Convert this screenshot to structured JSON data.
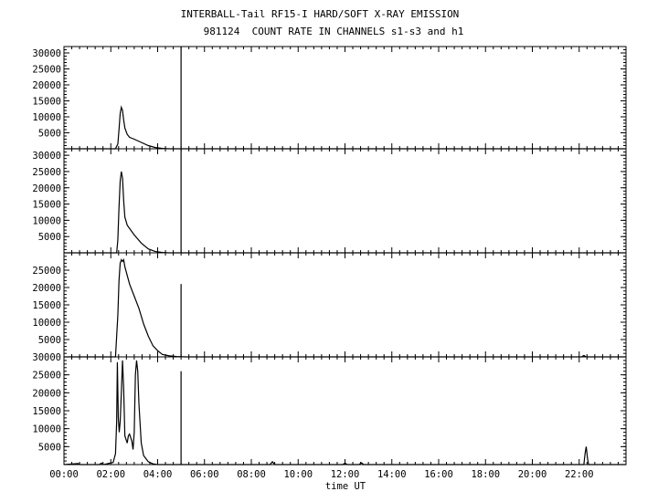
{
  "chart_data": {
    "type": "line",
    "title": "INTERBALL-Tail RF15-I HARD/SOFT X-RAY EMISSION",
    "subtitle": "981124  COUNT RATE IN CHANNELS s1-s3 and h1",
    "xlabel": "time UT",
    "x_tick_labels": [
      "00:00",
      "02:00",
      "04:00",
      "06:00",
      "08:00",
      "10:00",
      "12:00",
      "14:00",
      "16:00",
      "18:00",
      "20:00",
      "22:00"
    ],
    "x_tick_hours": [
      0,
      2,
      4,
      6,
      8,
      10,
      12,
      14,
      16,
      18,
      20,
      22
    ],
    "xlim": [
      0,
      24
    ],
    "grid": false,
    "panels": [
      {
        "ylim": [
          0,
          32000
        ],
        "y_ticks": [
          5000,
          10000,
          15000,
          20000,
          25000,
          30000
        ],
        "points": [
          [
            0,
            0
          ],
          [
            2.2,
            0
          ],
          [
            2.3,
            1500
          ],
          [
            2.35,
            6000
          ],
          [
            2.4,
            11000
          ],
          [
            2.45,
            13000
          ],
          [
            2.5,
            12000
          ],
          [
            2.55,
            9000
          ],
          [
            2.6,
            6500
          ],
          [
            2.7,
            4500
          ],
          [
            2.8,
            3600
          ],
          [
            3.0,
            3000
          ],
          [
            3.3,
            2000
          ],
          [
            3.6,
            1000
          ],
          [
            3.9,
            400
          ],
          [
            4.2,
            100
          ],
          [
            4.5,
            0
          ],
          [
            5.0,
            0
          ],
          [
            24,
            0
          ]
        ],
        "spikes": [
          [
            5.0,
            32000
          ]
        ]
      },
      {
        "ylim": [
          0,
          32000
        ],
        "y_ticks": [
          5000,
          10000,
          15000,
          20000,
          25000,
          30000
        ],
        "points": [
          [
            0,
            0
          ],
          [
            2.25,
            0
          ],
          [
            2.3,
            4000
          ],
          [
            2.35,
            14000
          ],
          [
            2.4,
            22000
          ],
          [
            2.45,
            25000
          ],
          [
            2.5,
            23000
          ],
          [
            2.55,
            16000
          ],
          [
            2.6,
            11000
          ],
          [
            2.7,
            8500
          ],
          [
            2.8,
            7500
          ],
          [
            3.0,
            5500
          ],
          [
            3.3,
            3000
          ],
          [
            3.6,
            1200
          ],
          [
            3.9,
            400
          ],
          [
            4.2,
            100
          ],
          [
            4.5,
            0
          ],
          [
            24,
            0
          ]
        ],
        "spikes": [
          [
            5.0,
            32000
          ]
        ]
      },
      {
        "ylim": [
          0,
          30000
        ],
        "y_ticks": [
          5000,
          10000,
          15000,
          20000,
          25000
        ],
        "points": [
          [
            0,
            0
          ],
          [
            2.2,
            0
          ],
          [
            2.3,
            12000
          ],
          [
            2.35,
            22000
          ],
          [
            2.4,
            27000
          ],
          [
            2.45,
            28000
          ],
          [
            2.5,
            27500
          ],
          [
            2.55,
            28000
          ],
          [
            2.6,
            26000
          ],
          [
            2.8,
            21000
          ],
          [
            3.0,
            17500
          ],
          [
            3.2,
            14000
          ],
          [
            3.4,
            9500
          ],
          [
            3.6,
            6000
          ],
          [
            3.8,
            3200
          ],
          [
            4.0,
            1800
          ],
          [
            4.2,
            700
          ],
          [
            4.5,
            300
          ],
          [
            4.8,
            100
          ],
          [
            5.2,
            0
          ],
          [
            22.1,
            0
          ],
          [
            22.2,
            400
          ],
          [
            22.3,
            0
          ],
          [
            24,
            0
          ]
        ],
        "spikes": [
          [
            5.0,
            21000
          ]
        ]
      },
      {
        "ylim": [
          0,
          30000
        ],
        "y_ticks": [
          5000,
          10000,
          15000,
          20000,
          25000,
          30000
        ],
        "points": [
          [
            0,
            0
          ],
          [
            0.6,
            300
          ],
          [
            0.7,
            0
          ],
          [
            1.0,
            0
          ],
          [
            1.5,
            0
          ],
          [
            1.6,
            400
          ],
          [
            1.7,
            0
          ],
          [
            2.1,
            600
          ],
          [
            2.2,
            3000
          ],
          [
            2.25,
            12000
          ],
          [
            2.28,
            28500
          ],
          [
            2.32,
            13000
          ],
          [
            2.36,
            9000
          ],
          [
            2.4,
            12000
          ],
          [
            2.45,
            20000
          ],
          [
            2.5,
            29000
          ],
          [
            2.55,
            21000
          ],
          [
            2.6,
            8000
          ],
          [
            2.7,
            6000
          ],
          [
            2.75,
            8000
          ],
          [
            2.8,
            8500
          ],
          [
            2.9,
            6500
          ],
          [
            2.95,
            4200
          ],
          [
            3.0,
            9000
          ],
          [
            3.05,
            25000
          ],
          [
            3.1,
            29000
          ],
          [
            3.15,
            26000
          ],
          [
            3.2,
            17000
          ],
          [
            3.3,
            6000
          ],
          [
            3.4,
            2500
          ],
          [
            3.6,
            800
          ],
          [
            3.8,
            200
          ],
          [
            4.0,
            0
          ],
          [
            8.8,
            0
          ],
          [
            8.9,
            800
          ],
          [
            9.0,
            0
          ],
          [
            11.9,
            0
          ],
          [
            12.0,
            400
          ],
          [
            12.1,
            0
          ],
          [
            12.6,
            0
          ],
          [
            12.7,
            500
          ],
          [
            12.8,
            0
          ],
          [
            22.2,
            0
          ],
          [
            22.25,
            3000
          ],
          [
            22.3,
            5000
          ],
          [
            22.35,
            2000
          ],
          [
            22.4,
            0
          ],
          [
            24,
            0
          ]
        ],
        "spikes": [
          [
            5.0,
            26000
          ]
        ]
      }
    ]
  }
}
